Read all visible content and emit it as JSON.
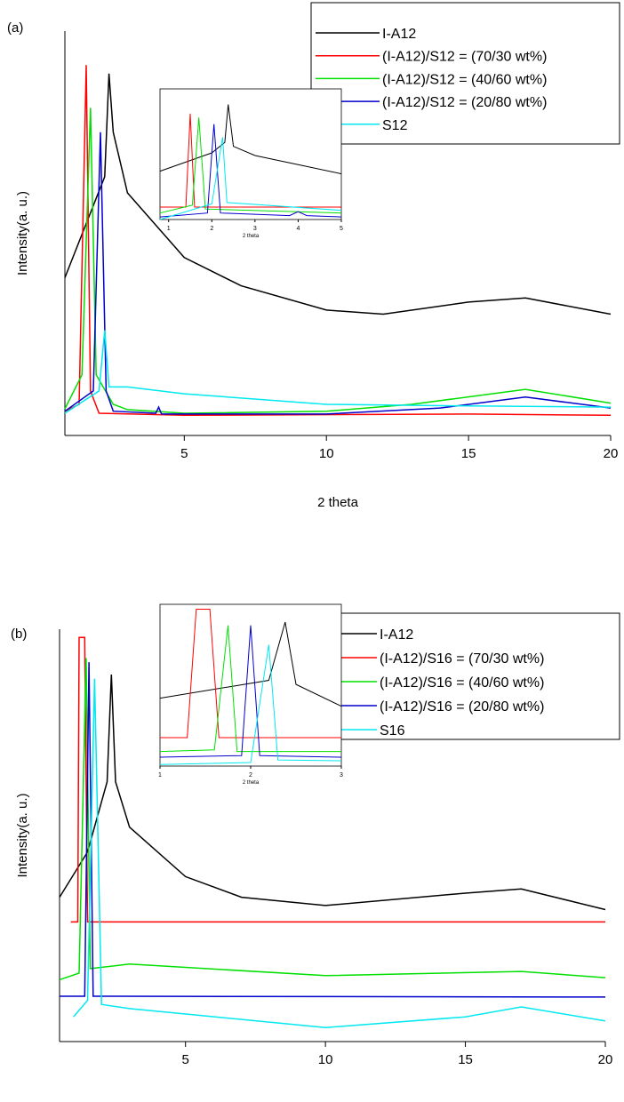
{
  "chart_data": [
    {
      "type": "line",
      "label": "(a)",
      "xlabel": "2 theta",
      "ylabel": "Intensity(a. u.)",
      "xlim": [
        0.8,
        20
      ],
      "xticks": [
        5,
        10,
        15,
        20
      ],
      "ylim": [
        0,
        100
      ],
      "legend": "upper right",
      "series": [
        {
          "name": "I-A12",
          "color": "#000000",
          "x": [
            0.8,
            2.2,
            2.35,
            2.5,
            3,
            5,
            7,
            10,
            12,
            15,
            17,
            20
          ],
          "values": [
            39,
            64,
            89.5,
            75,
            60,
            44,
            37,
            31,
            30,
            33,
            34,
            30
          ]
        },
        {
          "name": "(I-A12)/S12 = (70/30 wt%)",
          "color": "#ff0000",
          "x": [
            0.8,
            1.3,
            1.55,
            1.7,
            2,
            5,
            15,
            20
          ],
          "values": [
            6,
            7.7,
            91.6,
            11,
            5.5,
            5,
            5.3,
            5
          ]
        },
        {
          "name": "(I-A12)/S12 = (40/60 wt%)",
          "color": "#00e000",
          "x": [
            0.8,
            1.4,
            1.7,
            1.9,
            2.5,
            3,
            5,
            10,
            13,
            17,
            20
          ],
          "values": [
            6.6,
            15,
            81,
            15,
            7.7,
            6.4,
            5.5,
            6,
            7.7,
            11.4,
            8
          ]
        },
        {
          "name": "(I-A12)/S12 = (20/80 wt%)",
          "color": "#0000cc",
          "x": [
            0.8,
            1.8,
            2.05,
            2.25,
            2.5,
            4,
            4.1,
            4.2,
            10,
            14,
            17,
            20
          ],
          "values": [
            6,
            11,
            75,
            11,
            6,
            5.5,
            7,
            5.3,
            5.3,
            6.8,
            9.5,
            6.8
          ]
        },
        {
          "name": "S12",
          "color": "#00e8f0",
          "x": [
            0.8,
            2,
            2.2,
            2.35,
            3,
            5,
            10,
            15,
            20
          ],
          "values": [
            5.5,
            11,
            26,
            12,
            12,
            10.3,
            7.7,
            7.3,
            7
          ]
        }
      ]
    },
    {
      "type": "line",
      "xlabel": "2 theta",
      "xlim": [
        0.8,
        5
      ],
      "xticks": [
        1,
        2,
        3,
        4,
        5
      ],
      "ylim": [
        0,
        100
      ],
      "series": [
        {
          "color": "#000000",
          "x": [
            0.8,
            2,
            2.3,
            2.38,
            2.5,
            3,
            4,
            5
          ],
          "values": [
            37,
            51,
            59,
            88,
            56,
            49,
            42,
            35
          ]
        },
        {
          "color": "#ff0000",
          "x": [
            0.8,
            1.4,
            1.5,
            1.6,
            5
          ],
          "values": [
            9.5,
            9.5,
            81,
            9.5,
            9.5
          ]
        },
        {
          "color": "#00e000",
          "x": [
            0.8,
            1.55,
            1.7,
            1.85,
            5
          ],
          "values": [
            5,
            11,
            78,
            8,
            5
          ]
        },
        {
          "color": "#0000cc",
          "x": [
            0.8,
            1.9,
            2.05,
            2.2,
            3.8,
            4,
            4.2,
            5
          ],
          "values": [
            2,
            5,
            73,
            5,
            3,
            6,
            3,
            2
          ]
        },
        {
          "color": "#00e8f0",
          "x": [
            0.8,
            2,
            2.25,
            2.35,
            5
          ],
          "values": [
            0,
            12,
            63,
            13,
            7
          ]
        }
      ]
    },
    {
      "type": "line",
      "label": "(b)",
      "xlabel": "2 theta",
      "ylabel": "Intensity(a. u.)",
      "xlim": [
        0.5,
        20
      ],
      "xticks": [
        5,
        10,
        15,
        20
      ],
      "ylim": [
        0,
        100
      ],
      "legend": "upper right",
      "series": [
        {
          "name": "I-A12",
          "color": "#000000",
          "x": [
            0.5,
            1.5,
            2.2,
            2.35,
            2.5,
            3,
            5,
            7,
            10,
            15,
            17,
            20
          ],
          "values": [
            35,
            46,
            63,
            89,
            63,
            52,
            40,
            35,
            33,
            36,
            37,
            32
          ]
        },
        {
          "name": "(I-A12)/S16 = (70/30 wt%)",
          "color": "#ff0000",
          "x": [
            0.9,
            1.15,
            1.2,
            1.4,
            1.5,
            20
          ],
          "values": [
            29,
            29,
            98,
            98,
            29,
            29
          ]
        },
        {
          "name": "(I-A12)/S16 = (40/60 wt%)",
          "color": "#00e000",
          "x": [
            0.5,
            1.2,
            1.45,
            1.6,
            3,
            10,
            17,
            20
          ],
          "values": [
            15,
            16.6,
            93,
            17.7,
            18.8,
            16,
            17,
            15.5
          ]
        },
        {
          "name": "(I-A12)/S16 = (20/80 wt%)",
          "color": "#0000cc",
          "x": [
            0.5,
            1.4,
            1.55,
            1.7,
            20
          ],
          "values": [
            11,
            11,
            92,
            11,
            10.8
          ]
        },
        {
          "name": "S16",
          "color": "#00e8f0",
          "x": [
            1,
            1.5,
            1.75,
            2,
            3,
            10,
            15,
            17,
            20
          ],
          "values": [
            6,
            10,
            88,
            9,
            8,
            3.4,
            6,
            8.4,
            5
          ]
        }
      ]
    },
    {
      "type": "line",
      "xlabel": "2 theta",
      "xlim": [
        1,
        3
      ],
      "xticks": [
        1,
        2,
        3
      ],
      "ylim": [
        0,
        100
      ],
      "series": [
        {
          "color": "#000000",
          "x": [
            1,
            2.2,
            2.38,
            2.5,
            3
          ],
          "values": [
            42,
            53,
            89,
            50.5,
            37
          ]
        },
        {
          "color": "#ff0000",
          "x": [
            1,
            1.3,
            1.4,
            1.55,
            1.65,
            3
          ],
          "values": [
            17.6,
            17.6,
            97,
            97,
            17.6,
            17.6
          ]
        },
        {
          "color": "#00e000",
          "x": [
            1,
            1.6,
            1.75,
            1.85,
            3
          ],
          "values": [
            9,
            10,
            87,
            9,
            9
          ]
        },
        {
          "color": "#0000cc",
          "x": [
            1,
            1.9,
            2,
            2.1,
            3
          ],
          "values": [
            5.5,
            6.5,
            87,
            6.5,
            5.5
          ]
        },
        {
          "color": "#00e8f0",
          "x": [
            1,
            2,
            2.2,
            2.3,
            3
          ],
          "values": [
            1,
            2.2,
            75,
            3.8,
            3.3
          ]
        }
      ]
    }
  ]
}
